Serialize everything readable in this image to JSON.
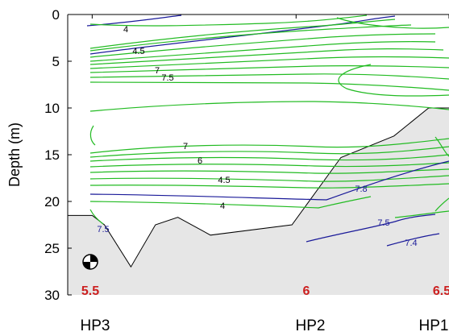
{
  "chart_data": {
    "type": "contour",
    "ylabel": "Depth (m)",
    "yticks": [
      0,
      5,
      10,
      15,
      20,
      25,
      30
    ],
    "ylim": [
      0,
      30
    ],
    "y_reversed": true,
    "stations": [
      {
        "name": "HP3",
        "bottom_value": "5.5",
        "x": 0
      },
      {
        "name": "HP2",
        "bottom_value": "6",
        "x": 1
      },
      {
        "name": "HP1",
        "bottom_value": "6.5",
        "x": 1.75
      }
    ],
    "xlim": [
      -0.12,
      1.75
    ],
    "seabed_depth": [
      {
        "x": -0.12,
        "depth": 21.5
      },
      {
        "x": 0.0,
        "depth": 21.5
      },
      {
        "x": 0.06,
        "depth": 22.5
      },
      {
        "x": 0.19,
        "depth": 27.0
      },
      {
        "x": 0.31,
        "depth": 22.5
      },
      {
        "x": 0.42,
        "depth": 21.7
      },
      {
        "x": 0.58,
        "depth": 23.6
      },
      {
        "x": 0.98,
        "depth": 22.5
      },
      {
        "x": 1.22,
        "depth": 15.3
      },
      {
        "x": 1.48,
        "depth": 13.0
      },
      {
        "x": 1.65,
        "depth": 10.0
      },
      {
        "x": 1.75,
        "depth": 10.0
      }
    ],
    "contour_colors": {
      "green": "#22bb22",
      "blue": "#1a1a99"
    },
    "contour_label_values": [
      "4",
      "4.5",
      "7",
      "7.5",
      "7",
      "6",
      "4.5",
      "4",
      "7.5",
      "7.8",
      "7.5",
      "7.4"
    ],
    "mooring_symbol": "instrument-marker",
    "seabed_fill": "#e6e6e6"
  }
}
